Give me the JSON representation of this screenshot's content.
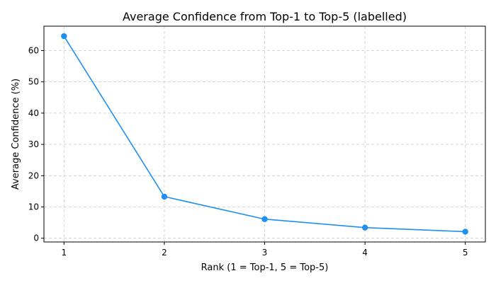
{
  "chart_data": {
    "type": "line",
    "title": "Average Confidence from Top-1 to Top-5 (labelled)",
    "xlabel": "Rank (1 = Top-1, 5 = Top-5)",
    "ylabel": "Average Confidence (%)",
    "x": [
      1,
      2,
      3,
      4,
      5
    ],
    "xticks": [
      "1",
      "2",
      "3",
      "4",
      "5"
    ],
    "xlim": [
      0.8,
      5.2
    ],
    "yticks": [
      0,
      10,
      20,
      30,
      40,
      50,
      60
    ],
    "ylim": [
      -1.2,
      67.8
    ],
    "grid": true,
    "series": [
      {
        "values": [
          64.6,
          13.3,
          6.1,
          3.4,
          2.1
        ]
      }
    ],
    "colors": {
      "line": "#1f8ff0",
      "grid": "#cccccc",
      "axis": "#000000"
    }
  }
}
